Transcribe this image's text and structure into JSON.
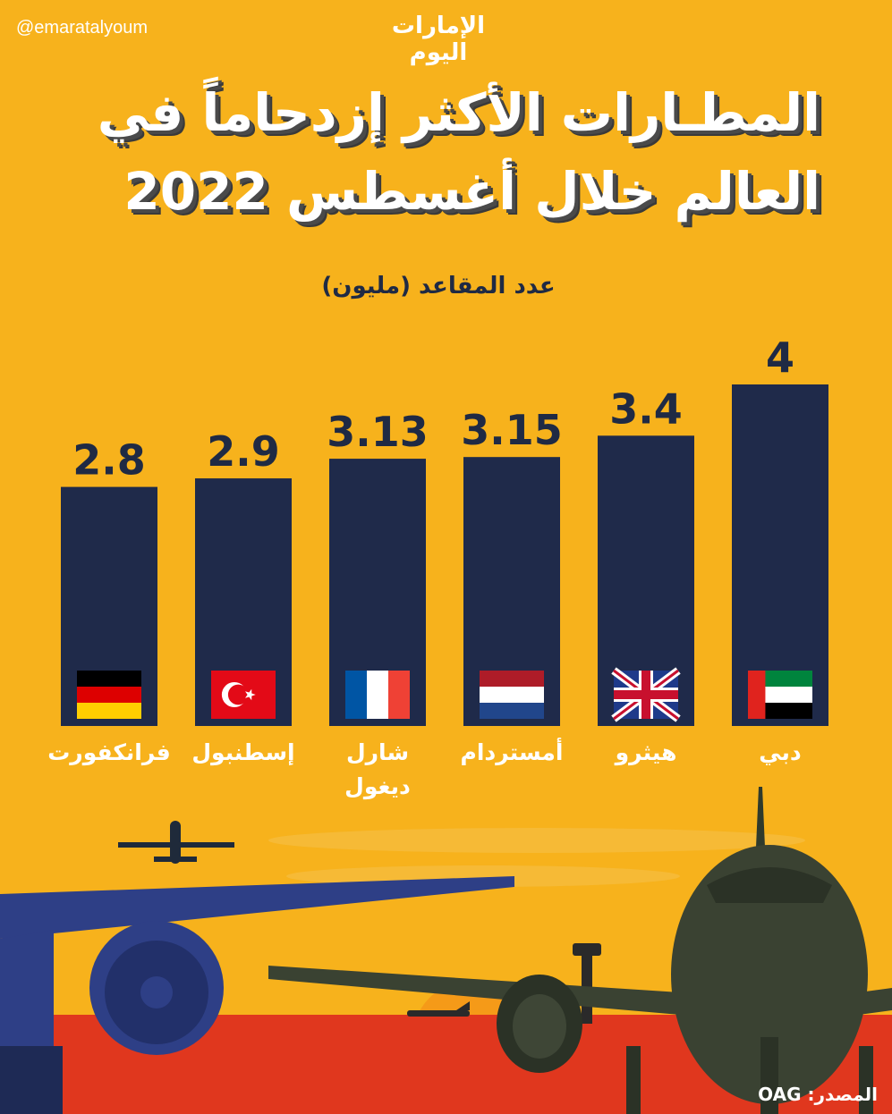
{
  "header": {
    "handle": "@emaratalyoum",
    "logo_text": "الإمارات اليوم",
    "title_line1": "المطـارات الأكثر إزدحاماً في",
    "title_line2": "العالم خلال أغسطس 2022"
  },
  "colors": {
    "background": "#f7b21c",
    "bar": "#1f2a4a",
    "text_dark": "#1f2a44",
    "ground": "#e0371e",
    "sun": "#f59a18"
  },
  "chart_data": {
    "type": "bar",
    "unit_label": "عدد المقاعد (مليون)",
    "categories": [
      "دبي",
      "هيثرو",
      "أمستردام",
      "شارل ديغول",
      "إسطنبول",
      "فرانكفورت"
    ],
    "category_lines": [
      [
        "دبي"
      ],
      [
        "هيثرو"
      ],
      [
        "أمستردام"
      ],
      [
        "شارل",
        "ديغول"
      ],
      [
        "إسطنبول"
      ],
      [
        "فرانكفورت"
      ]
    ],
    "values": [
      4,
      3.4,
      3.15,
      3.13,
      2.9,
      2.8
    ],
    "value_labels": [
      "4",
      "3.4",
      "3.15",
      "3.13",
      "2.9",
      "2.8"
    ],
    "flags": [
      "uae-flag-icon",
      "uk-flag-icon",
      "netherlands-flag-icon",
      "france-flag-icon",
      "turkey-flag-icon",
      "germany-flag-icon"
    ],
    "order": "right-to-left",
    "ylim": [
      0,
      4
    ]
  },
  "footer": {
    "source": "المصدر: OAG"
  }
}
